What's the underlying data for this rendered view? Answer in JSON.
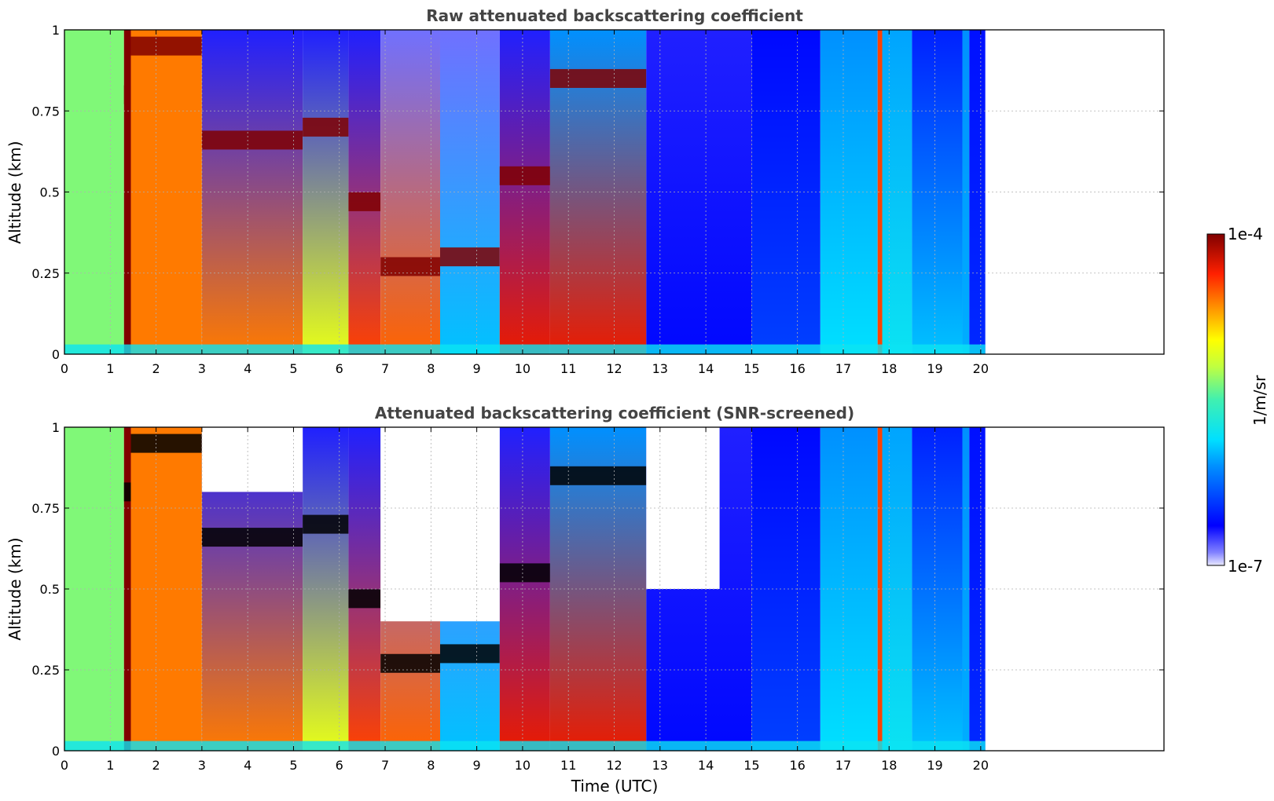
{
  "chart_data": [
    {
      "type": "heatmap",
      "title": "Raw attenuated backscattering coefficient",
      "xlabel": "",
      "ylabel": "Altitude (km)",
      "xlim": [
        0,
        24
      ],
      "ylim": [
        0,
        1
      ],
      "x_ticks": [
        "0",
        "1",
        "2",
        "3",
        "4",
        "5",
        "6",
        "7",
        "8",
        "9",
        "10",
        "11",
        "12",
        "13",
        "14",
        "15",
        "16",
        "17",
        "18",
        "19",
        "20"
      ],
      "y_ticks": [
        "0",
        "0.25",
        "0.5",
        "0.75",
        "1"
      ],
      "grid": true,
      "data_end_time": 20.1,
      "columns": [
        {
          "t0": 0.0,
          "t1": 1.3,
          "base": 0.55,
          "top": 0.55,
          "cloud_alt": null
        },
        {
          "t0": 1.3,
          "t1": 1.45,
          "base": 1.0,
          "top": 1.0,
          "cloud_alt": 0.8
        },
        {
          "t0": 1.45,
          "t1": 3.0,
          "base": 0.8,
          "top": 0.8,
          "cloud_alt": 0.95
        },
        {
          "t0": 3.0,
          "t1": 5.2,
          "base": 0.8,
          "top": 0.1,
          "cloud_alt": 0.66
        },
        {
          "t0": 5.2,
          "t1": 6.2,
          "base": 0.65,
          "top": 0.1,
          "cloud_alt": 0.7
        },
        {
          "t0": 6.2,
          "t1": 6.9,
          "base": 0.85,
          "top": 0.1,
          "cloud_alt": 0.47
        },
        {
          "t0": 6.9,
          "t1": 8.2,
          "base": 0.82,
          "top": 0.05,
          "cloud_alt": 0.27
        },
        {
          "t0": 8.2,
          "t1": 9.5,
          "base": 0.35,
          "top": 0.05,
          "cloud_alt": 0.3
        },
        {
          "t0": 9.5,
          "t1": 10.6,
          "base": 0.9,
          "top": 0.1,
          "cloud_alt": 0.55
        },
        {
          "t0": 10.6,
          "t1": 12.7,
          "base": 0.9,
          "top": 0.3,
          "cloud_alt": 0.85
        },
        {
          "t0": 12.7,
          "t1": 15.0,
          "base": 0.13,
          "top": 0.1,
          "cloud_alt": null
        },
        {
          "t0": 15.0,
          "t1": 16.5,
          "base": 0.2,
          "top": 0.13,
          "cloud_alt": null
        },
        {
          "t0": 16.5,
          "t1": 17.75,
          "base": 0.38,
          "top": 0.3,
          "cloud_alt": null
        },
        {
          "t0": 17.75,
          "t1": 17.85,
          "base": 0.85,
          "top": 0.85,
          "cloud_alt": null
        },
        {
          "t0": 17.85,
          "t1": 18.5,
          "base": 0.4,
          "top": 0.32,
          "cloud_alt": null
        },
        {
          "t0": 18.5,
          "t1": 19.6,
          "base": 0.35,
          "top": 0.16,
          "cloud_alt": null
        },
        {
          "t0": 19.6,
          "t1": 19.75,
          "base": 0.33,
          "top": 0.3,
          "cloud_alt": null
        },
        {
          "t0": 19.75,
          "t1": 20.1,
          "base": 0.17,
          "top": 0.14,
          "cloud_alt": null
        }
      ]
    },
    {
      "type": "heatmap",
      "title": "Attenuated backscattering coefficient (SNR-screened)",
      "xlabel": "Time (UTC)",
      "ylabel": "Altitude (km)",
      "xlim": [
        0,
        24
      ],
      "ylim": [
        0,
        1
      ],
      "x_ticks": [
        "0",
        "1",
        "2",
        "3",
        "4",
        "5",
        "6",
        "7",
        "8",
        "9",
        "10",
        "11",
        "12",
        "13",
        "14",
        "15",
        "16",
        "17",
        "18",
        "19",
        "20"
      ],
      "y_ticks": [
        "0",
        "0.25",
        "0.5",
        "0.75",
        "1"
      ],
      "grid": true,
      "data_end_time": 20.1,
      "screened_above": [
        {
          "t0": 3.0,
          "t1": 5.2,
          "alt": 0.8
        },
        {
          "t0": 6.9,
          "t1": 9.5,
          "alt": 0.4
        },
        {
          "t0": 12.7,
          "t1": 14.3,
          "alt": 0.5
        }
      ]
    }
  ],
  "colorbar": {
    "label": "1/m/sr",
    "max_label": "1e-4",
    "min_label": "1e-7",
    "colormap": "jet",
    "scale": "log"
  }
}
